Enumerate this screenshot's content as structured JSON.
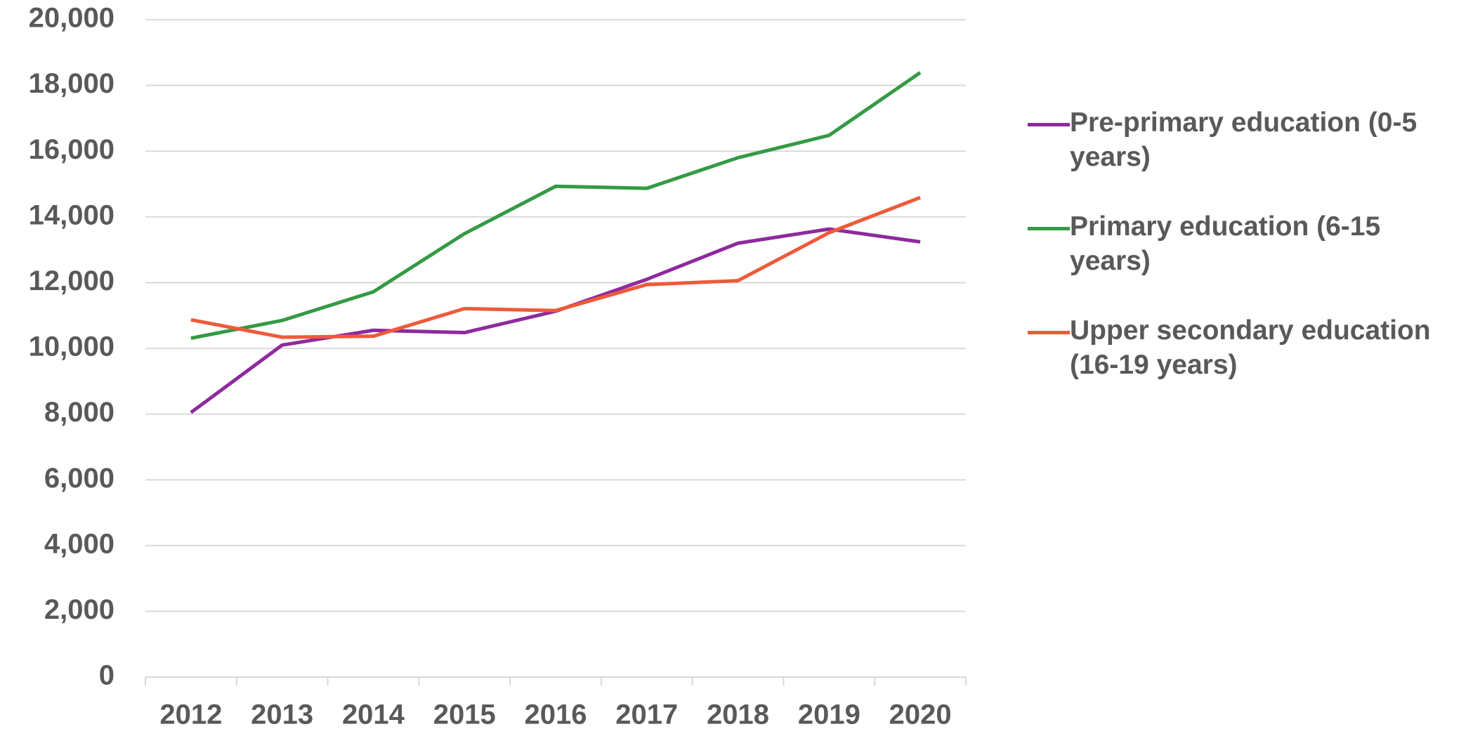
{
  "chart_data": {
    "type": "line",
    "categories": [
      "2012",
      "2013",
      "2014",
      "2015",
      "2016",
      "2017",
      "2018",
      "2019",
      "2020"
    ],
    "series": [
      {
        "name": "Pre-primary education (0-5 years)",
        "color": "#8e2a9d",
        "values": [
          8050,
          10100,
          10550,
          10480,
          11130,
          12100,
          13200,
          13630,
          13240
        ]
      },
      {
        "name": "Primary education (6-15 years)",
        "color": "#349a45",
        "values": [
          10310,
          10850,
          11720,
          13490,
          14930,
          14870,
          15800,
          16480,
          18390
        ]
      },
      {
        "name": "Upper secondary education (16-19 years)",
        "color": "#ee5a3a",
        "values": [
          10870,
          10340,
          10370,
          11210,
          11150,
          11940,
          12060,
          13520,
          14590
        ]
      }
    ],
    "ylim": [
      0,
      20000
    ],
    "yticks": [
      0,
      {
        "value": 2000,
        "label": "2,000"
      },
      {
        "value": 4000,
        "label": "4,000"
      },
      {
        "value": 6000,
        "label": "6,000"
      },
      {
        "value": 8000,
        "label": "8,000"
      },
      {
        "value": 10000,
        "label": "10,000"
      },
      {
        "value": 12000,
        "label": "12,000"
      },
      {
        "value": 14000,
        "label": "14,000"
      },
      {
        "value": 16000,
        "label": "16,000"
      },
      {
        "value": 18000,
        "label": "18,000"
      },
      {
        "value": 20000,
        "label": "20,000"
      }
    ],
    "grid": true,
    "legend": "right"
  }
}
